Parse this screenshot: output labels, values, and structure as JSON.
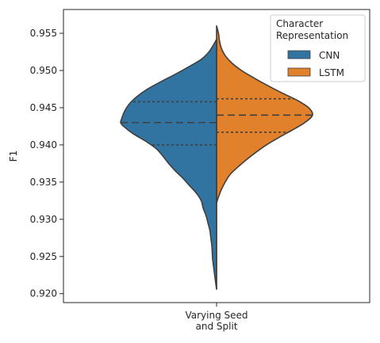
{
  "chart_data": {
    "type": "violin",
    "split": true,
    "ylabel": "F1",
    "xlabel": "",
    "categories": [
      "Varying Seed\nand Split"
    ],
    "yticks": [
      0.92,
      0.925,
      0.93,
      0.935,
      0.94,
      0.945,
      0.95,
      0.955
    ],
    "ytick_labels": [
      "0.920",
      "0.925",
      "0.930",
      "0.935",
      "0.940",
      "0.945",
      "0.950",
      "0.955"
    ],
    "ylim": [
      0.9188,
      0.9582
    ],
    "legend": {
      "title": "Character\nRepresentation",
      "placement": "top-right",
      "entries": [
        "CNN",
        "LSTM"
      ]
    },
    "series": [
      {
        "name": "CNN",
        "color": "#3274a1",
        "quartiles": [
          0.94,
          0.943,
          0.9458
        ],
        "density": [
          [
            0.9206,
            0.0
          ],
          [
            0.9215,
            0.01
          ],
          [
            0.9225,
            0.02
          ],
          [
            0.9235,
            0.03
          ],
          [
            0.9245,
            0.04
          ],
          [
            0.9255,
            0.045
          ],
          [
            0.9265,
            0.05
          ],
          [
            0.9275,
            0.06
          ],
          [
            0.9285,
            0.07
          ],
          [
            0.9295,
            0.09
          ],
          [
            0.9305,
            0.11
          ],
          [
            0.9315,
            0.14
          ],
          [
            0.9325,
            0.16
          ],
          [
            0.9335,
            0.21
          ],
          [
            0.9345,
            0.28
          ],
          [
            0.9355,
            0.35
          ],
          [
            0.9365,
            0.43
          ],
          [
            0.9375,
            0.5
          ],
          [
            0.9385,
            0.56
          ],
          [
            0.9395,
            0.63
          ],
          [
            0.9405,
            0.74
          ],
          [
            0.9415,
            0.87
          ],
          [
            0.9425,
            0.97
          ],
          [
            0.943,
            1.0
          ],
          [
            0.9435,
            0.99
          ],
          [
            0.9445,
            0.96
          ],
          [
            0.9455,
            0.91
          ],
          [
            0.9465,
            0.83
          ],
          [
            0.9475,
            0.72
          ],
          [
            0.9485,
            0.58
          ],
          [
            0.9495,
            0.43
          ],
          [
            0.9505,
            0.29
          ],
          [
            0.9515,
            0.16
          ],
          [
            0.9525,
            0.08
          ],
          [
            0.9535,
            0.03
          ],
          [
            0.9542,
            0.0
          ]
        ]
      },
      {
        "name": "LSTM",
        "color": "#e1812c",
        "quartiles": [
          0.9417,
          0.944,
          0.9462
        ],
        "density": [
          [
            0.9322,
            0.0
          ],
          [
            0.933,
            0.02
          ],
          [
            0.934,
            0.05
          ],
          [
            0.935,
            0.09
          ],
          [
            0.936,
            0.14
          ],
          [
            0.937,
            0.22
          ],
          [
            0.938,
            0.31
          ],
          [
            0.939,
            0.41
          ],
          [
            0.94,
            0.52
          ],
          [
            0.941,
            0.65
          ],
          [
            0.942,
            0.79
          ],
          [
            0.943,
            0.92
          ],
          [
            0.944,
            1.0
          ],
          [
            0.945,
            0.96
          ],
          [
            0.946,
            0.84
          ],
          [
            0.947,
            0.68
          ],
          [
            0.948,
            0.53
          ],
          [
            0.949,
            0.39
          ],
          [
            0.95,
            0.26
          ],
          [
            0.951,
            0.16
          ],
          [
            0.952,
            0.09
          ],
          [
            0.953,
            0.05
          ],
          [
            0.954,
            0.03
          ],
          [
            0.955,
            0.02
          ],
          [
            0.956,
            0.0
          ]
        ]
      }
    ]
  }
}
